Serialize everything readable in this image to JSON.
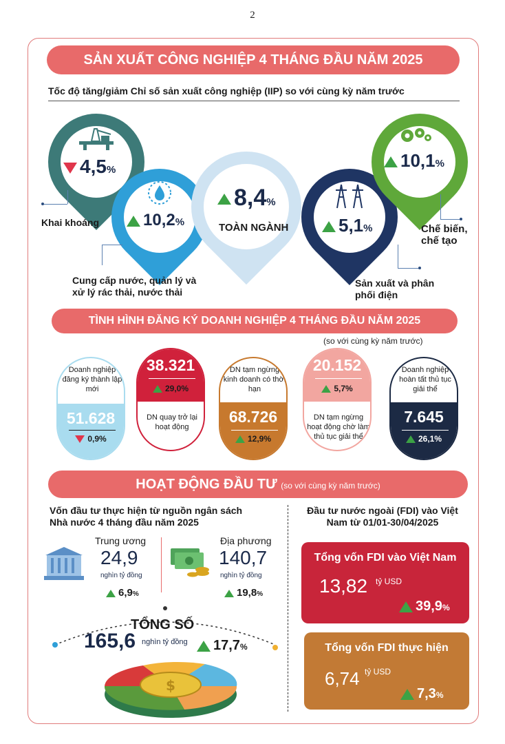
{
  "page_number": "2",
  "section1": {
    "title": "SẢN XUẤT CÔNG NGHIỆP 4 THÁNG ĐẦU NĂM 2025",
    "subtitle": "Tốc độ tăng/giảm Chỉ số sản xuất công nghiệp (IIP) so với cùng kỳ năm trước",
    "items": [
      {
        "label": "Khai khoáng",
        "value": "4,5",
        "unit": "%",
        "trend": "down",
        "color": "#3d7a78",
        "icon": "oil-rig-icon"
      },
      {
        "label": "Cung cấp nước, quản lý và xử lý rác thải, nước thải",
        "value": "10,2",
        "unit": "%",
        "trend": "up",
        "color": "#2f9fd8",
        "icon": "water-drop-icon"
      },
      {
        "label": "TOÀN NGÀNH",
        "value": "8,4",
        "unit": "%",
        "trend": "up",
        "color": "#cfe3f2",
        "icon": ""
      },
      {
        "label": "Sản xuất và phân phối điện",
        "value": "5,1",
        "unit": "%",
        "trend": "up",
        "color": "#1f3563",
        "icon": "power-tower-icon"
      },
      {
        "label": "Chế biến, chế tạo",
        "value": "10,1",
        "unit": "%",
        "trend": "up",
        "color": "#5fa83a",
        "icon": "gears-icon"
      }
    ]
  },
  "section2": {
    "title": "TÌNH HÌNH ĐĂNG KÝ DOANH NGHIỆP 4 THÁNG ĐẦU NĂM 2025",
    "note": "(so với cùng kỳ năm trước)",
    "items": [
      {
        "label": "Doanh nghiệp đăng ký thành lập mới",
        "value": "51.628",
        "pct": "0,9",
        "unit": "%",
        "trend": "down",
        "color": "#a9dcef"
      },
      {
        "label": "DN quay trở lại hoạt động",
        "value": "38.321",
        "pct": "29,0",
        "unit": "%",
        "trend": "up",
        "color": "#d0213b"
      },
      {
        "label": "DN tạm ngừng kinh doanh có thời hạn",
        "value": "68.726",
        "pct": "12,9",
        "unit": "%",
        "trend": "up",
        "color": "#c7792e"
      },
      {
        "label": "DN tạm ngừng hoạt động chờ làm thủ tục giải thể",
        "value": "20.152",
        "pct": "5,7",
        "unit": "%",
        "trend": "up",
        "color": "#f2a6a0"
      },
      {
        "label": "Doanh nghiệp hoàn tất thủ tục giải thể",
        "value": "7.645",
        "pct": "26,1",
        "unit": "%",
        "trend": "up",
        "color": "#1c2a44"
      }
    ]
  },
  "section3": {
    "title": "HOẠT ĐỘNG ĐẦU TƯ",
    "note": "(so với cùng kỳ năm trước)",
    "budget": {
      "heading": "Vốn đầu tư thực hiện từ nguồn ngân sách Nhà nước 4 tháng đầu năm 2025",
      "central": {
        "label": "Trung ương",
        "value": "24,9",
        "unit": "nghìn tỷ đồng",
        "pct": "6,9",
        "pct_unit": "%"
      },
      "local": {
        "label": "Địa phương",
        "value": "140,7",
        "unit": "nghìn tỷ đồng",
        "pct": "19,8",
        "pct_unit": "%"
      },
      "total": {
        "label": "TỔNG SỐ",
        "value": "165,6",
        "unit": "nghìn tỷ đồng",
        "pct": "17,7",
        "pct_unit": "%"
      }
    },
    "fdi": {
      "heading": "Đầu tư nước ngoài (FDI) vào Việt Nam từ 01/01-30/04/2025",
      "registered": {
        "label": "Tổng vốn FDI vào Việt Nam",
        "value": "13,82",
        "unit": "tỷ USD",
        "pct": "39,9",
        "pct_unit": "%",
        "color": "#c8253a"
      },
      "disbursed": {
        "label": "Tổng vốn FDI thực hiện",
        "value": "6,74",
        "unit": "tỷ USD",
        "pct": "7,3",
        "pct_unit": "%",
        "color": "#c27a35"
      }
    }
  }
}
